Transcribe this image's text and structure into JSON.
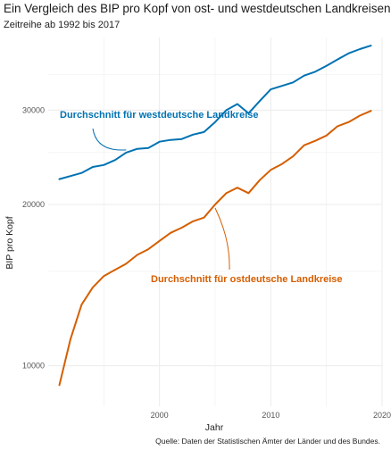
{
  "title": "Ein Vergleich des BIP pro Kopf von ost- und westdeutschen Landkreisen",
  "subtitle": "Zeitreihe ab 1992 bis 2017",
  "caption": "Quelle: Daten der Statistischen Ämter der Länder und des Bundes.",
  "colors": {
    "west": "#0072B2",
    "east": "#D55E00",
    "grid": "#ebebeb"
  },
  "chart_data": {
    "type": "line",
    "title": "Ein Vergleich des BIP pro Kopf von ost- und westdeutschen Landkreisen",
    "subtitle": "Zeitreihe ab 1992 bis 2017",
    "xlabel": "Jahr",
    "ylabel": "BIP pro Kopf",
    "x_scale": "linear",
    "y_scale": "log10",
    "xlim": [
      1990,
      2020
    ],
    "ylim": [
      8400,
      41000
    ],
    "x_ticks": [
      2000,
      2010,
      2020
    ],
    "y_ticks": [
      10000,
      20000,
      30000
    ],
    "grid": true,
    "legend": "none",
    "x": [
      1991,
      1992,
      1993,
      1994,
      1995,
      1996,
      1997,
      1998,
      1999,
      2000,
      2001,
      2002,
      2003,
      2004,
      2005,
      2006,
      2007,
      2008,
      2009,
      2010,
      2011,
      2012,
      2013,
      2014,
      2015,
      2016,
      2017,
      2018,
      2019
    ],
    "series": [
      {
        "name": "Durchschnitt für westdeutsche Landkreise",
        "values": [
          22300,
          22600,
          22900,
          23500,
          23700,
          24200,
          25000,
          25400,
          25500,
          26200,
          26400,
          26500,
          27000,
          27300,
          28500,
          30000,
          30800,
          29600,
          31200,
          32800,
          33300,
          33800,
          34800,
          35400,
          36300,
          37300,
          38300,
          39000,
          39600
        ]
      },
      {
        "name": "Durchschnitt für ostdeutsche Landkreise",
        "values": [
          9200,
          11200,
          13000,
          14000,
          14700,
          15100,
          15500,
          16100,
          16500,
          17100,
          17700,
          18100,
          18600,
          18900,
          20000,
          21000,
          21500,
          21000,
          22200,
          23200,
          23800,
          24600,
          25800,
          26300,
          26900,
          28000,
          28500,
          29300,
          29900
        ]
      }
    ],
    "annotations": [
      {
        "text": "Durchschnitt für westdeutsche Landkreise",
        "series": 0
      },
      {
        "text": "Durchschnitt für ostdeutsche Landkreise",
        "series": 1
      }
    ]
  }
}
